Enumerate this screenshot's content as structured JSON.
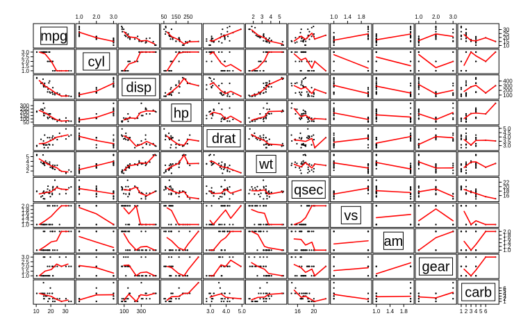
{
  "chart_data": {
    "type": "scatter",
    "matrix": "pairs",
    "variables": [
      "mpg",
      "cyl",
      "disp",
      "hp",
      "drat",
      "wt",
      "qsec",
      "vs",
      "am",
      "gear",
      "carb"
    ],
    "points_color": "#000000",
    "smooth_color": "#ff0000",
    "axis_ticks": [
      {
        "side": "left",
        "var": 1,
        "ticks": [
          1.0,
          1.5,
          2.0,
          2.5,
          3.0
        ],
        "labels": [
          "1.0",
          "1.5",
          "2.0",
          "2.5",
          "3.0"
        ]
      },
      {
        "side": "left",
        "var": 3,
        "ticks": [
          50,
          100,
          150,
          200,
          250,
          300
        ],
        "labels": [
          "50",
          "100",
          "150",
          "200",
          "250",
          "300"
        ]
      },
      {
        "side": "left",
        "var": 5,
        "ticks": [
          2,
          3,
          4,
          5
        ],
        "labels": [
          "2",
          "3",
          "4",
          "5"
        ]
      },
      {
        "side": "left",
        "var": 7,
        "ticks": [
          1.0,
          1.2,
          1.4,
          1.6,
          1.8,
          2.0
        ],
        "labels": [
          "1.0",
          "1.2",
          "1.4",
          "1.6",
          "1.8",
          "2.0"
        ]
      },
      {
        "side": "left",
        "var": 9,
        "ticks": [
          1.0,
          1.5,
          2.0,
          2.5,
          3.0
        ],
        "labels": [
          "1.0",
          "1.5",
          "2.0",
          "2.5",
          "3.0"
        ]
      },
      {
        "side": "right",
        "var": 0,
        "ticks": [
          10,
          15,
          20,
          25,
          30
        ],
        "labels": [
          "10",
          "15",
          "20",
          "25",
          "30"
        ]
      },
      {
        "side": "right",
        "var": 2,
        "ticks": [
          100,
          200,
          300,
          400
        ],
        "labels": [
          "100",
          "200",
          "300",
          "400"
        ]
      },
      {
        "side": "right",
        "var": 4,
        "ticks": [
          3.0,
          3.5,
          4.0,
          4.5,
          5.0
        ],
        "labels": [
          "3.0",
          "3.5",
          "4.0",
          "4.5",
          "5.0"
        ]
      },
      {
        "side": "right",
        "var": 6,
        "ticks": [
          16,
          18,
          20,
          22
        ],
        "labels": [
          "16",
          "18",
          "20",
          "22"
        ]
      },
      {
        "side": "right",
        "var": 8,
        "ticks": [
          1.0,
          1.2,
          1.4,
          1.6,
          1.8,
          2.0
        ],
        "labels": [
          "1.0",
          "1.2",
          "1.4",
          "1.6",
          "1.8",
          "2.0"
        ]
      },
      {
        "side": "right",
        "var": 10,
        "ticks": [
          1,
          2,
          3,
          4,
          5,
          6
        ],
        "labels": [
          "1",
          "2",
          "3",
          "4",
          "5",
          "6"
        ]
      },
      {
        "side": "top",
        "var": 1,
        "ticks": [
          1.0,
          2.0,
          3.0
        ],
        "labels": [
          "1.0",
          "2.0",
          "3.0"
        ]
      },
      {
        "side": "top",
        "var": 3,
        "ticks": [
          50,
          150,
          250
        ],
        "labels": [
          "50",
          "150",
          "250"
        ]
      },
      {
        "side": "top",
        "var": 5,
        "ticks": [
          2,
          3,
          4,
          5
        ],
        "labels": [
          "2",
          "3",
          "4",
          "5"
        ]
      },
      {
        "side": "top",
        "var": 7,
        "ticks": [
          1.0,
          1.4,
          1.8
        ],
        "labels": [
          "1.0",
          "1.4",
          "1.8"
        ]
      },
      {
        "side": "top",
        "var": 9,
        "ticks": [
          1.0,
          2.0,
          3.0
        ],
        "labels": [
          "1.0",
          "2.0",
          "3.0"
        ]
      },
      {
        "side": "bottom",
        "var": 0,
        "ticks": [
          10,
          20,
          30
        ],
        "labels": [
          "10",
          "20",
          "30"
        ]
      },
      {
        "side": "bottom",
        "var": 2,
        "ticks": [
          100,
          300
        ],
        "labels": [
          "100",
          "300"
        ]
      },
      {
        "side": "bottom",
        "var": 4,
        "ticks": [
          3.0,
          4.0,
          5.0
        ],
        "labels": [
          "3.0",
          "4.0",
          "5.0"
        ]
      },
      {
        "side": "bottom",
        "var": 6,
        "ticks": [
          16,
          20
        ],
        "labels": [
          "16",
          "20"
        ]
      },
      {
        "side": "bottom",
        "var": 8,
        "ticks": [
          1.0,
          1.4,
          1.8
        ],
        "labels": [
          "1.0",
          "1.4",
          "1.8"
        ]
      },
      {
        "side": "bottom",
        "var": 10,
        "ticks": [
          1,
          2,
          3,
          4,
          5,
          6
        ],
        "labels": [
          "1",
          "2",
          "3",
          "4",
          "5",
          "6"
        ]
      }
    ],
    "data": {
      "mpg": [
        21.0,
        21.0,
        22.8,
        21.4,
        18.7,
        18.1,
        14.3,
        24.4,
        22.8,
        19.2,
        17.8,
        16.4,
        17.3,
        15.2,
        10.4,
        10.4,
        14.7,
        32.4,
        30.4,
        33.9,
        21.5,
        15.5,
        15.2,
        13.3,
        19.2,
        27.3,
        26.0,
        30.4,
        15.8,
        19.7,
        15.0,
        21.4
      ],
      "cyl": [
        2,
        2,
        1,
        2,
        3,
        2,
        3,
        1,
        1,
        2,
        2,
        3,
        3,
        3,
        3,
        3,
        3,
        1,
        1,
        1,
        1,
        3,
        3,
        3,
        3,
        1,
        1,
        1,
        3,
        2,
        3,
        1
      ],
      "disp": [
        160,
        160,
        108,
        258,
        360,
        225,
        360,
        146.7,
        140.8,
        167.6,
        167.6,
        275.8,
        275.8,
        275.8,
        472,
        460,
        440,
        78.7,
        75.7,
        71.1,
        120.1,
        318,
        304,
        350,
        400,
        79,
        120.3,
        95.1,
        351,
        145,
        301,
        121
      ],
      "hp": [
        110,
        110,
        93,
        110,
        175,
        105,
        245,
        62,
        95,
        123,
        123,
        180,
        180,
        180,
        205,
        215,
        230,
        66,
        52,
        65,
        97,
        150,
        150,
        245,
        175,
        66,
        91,
        113,
        264,
        175,
        335,
        109
      ],
      "drat": [
        3.9,
        3.9,
        3.85,
        3.08,
        3.15,
        2.76,
        3.21,
        3.69,
        3.92,
        3.92,
        3.92,
        3.07,
        3.07,
        3.07,
        2.93,
        3.0,
        3.23,
        4.08,
        4.93,
        4.22,
        3.7,
        2.76,
        3.15,
        3.73,
        3.08,
        4.08,
        4.43,
        3.77,
        4.22,
        3.62,
        3.54,
        4.11
      ],
      "wt": [
        2.62,
        2.875,
        2.32,
        3.215,
        3.44,
        3.46,
        3.57,
        3.19,
        3.15,
        3.44,
        3.44,
        4.07,
        3.73,
        3.78,
        5.25,
        5.424,
        5.345,
        2.2,
        1.615,
        1.835,
        2.465,
        3.52,
        3.435,
        3.84,
        3.845,
        1.935,
        2.14,
        1.513,
        3.17,
        2.77,
        3.57,
        2.78
      ],
      "qsec": [
        16.46,
        17.02,
        18.61,
        19.44,
        17.02,
        20.22,
        15.84,
        20.0,
        22.9,
        18.3,
        18.9,
        17.4,
        17.6,
        18.0,
        17.98,
        17.82,
        17.42,
        19.47,
        18.52,
        19.9,
        20.01,
        16.87,
        17.3,
        15.41,
        17.05,
        18.9,
        16.7,
        16.9,
        14.5,
        15.5,
        14.6,
        18.6
      ],
      "vs": [
        1,
        1,
        2,
        2,
        1,
        2,
        1,
        2,
        2,
        2,
        2,
        1,
        1,
        1,
        1,
        1,
        1,
        2,
        2,
        2,
        2,
        1,
        1,
        1,
        1,
        2,
        1,
        2,
        1,
        1,
        1,
        2
      ],
      "am": [
        2,
        2,
        2,
        1,
        1,
        1,
        1,
        1,
        1,
        1,
        1,
        1,
        1,
        1,
        1,
        1,
        1,
        2,
        2,
        2,
        1,
        1,
        1,
        1,
        1,
        2,
        2,
        2,
        2,
        2,
        2,
        2
      ],
      "gear": [
        2,
        2,
        2,
        1,
        1,
        1,
        1,
        2,
        2,
        2,
        2,
        1,
        1,
        1,
        1,
        1,
        1,
        2,
        2,
        2,
        1,
        1,
        1,
        1,
        1,
        2,
        3,
        3,
        3,
        3,
        3,
        2
      ],
      "carb": [
        4,
        4,
        1,
        1,
        2,
        1,
        4,
        2,
        2,
        4,
        4,
        3,
        3,
        3,
        4,
        4,
        4,
        1,
        2,
        1,
        1,
        2,
        2,
        4,
        2,
        1,
        2,
        2,
        4,
        6,
        8,
        2
      ]
    }
  }
}
